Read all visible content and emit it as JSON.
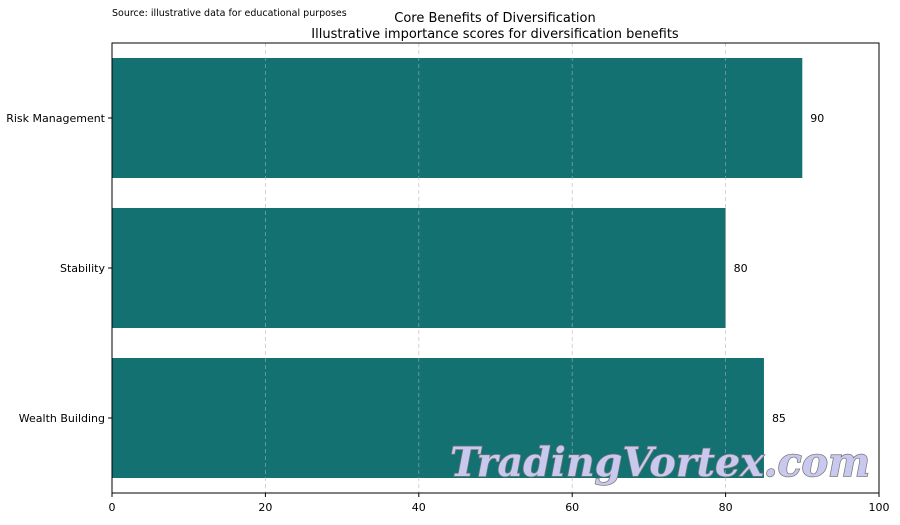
{
  "chart_data": {
    "type": "bar",
    "orientation": "horizontal",
    "title": "Core Benefits of Diversification",
    "subtitle": "Illustrative importance scores for diversification benefits",
    "source_note": "Source: illustrative data for educational purposes",
    "categories": [
      "Risk Management",
      "Stability",
      "Wealth Building"
    ],
    "values": [
      90,
      80,
      85
    ],
    "data_labels": [
      "90",
      "80",
      "85"
    ],
    "xlim": [
      0,
      100
    ],
    "xticks": [
      0,
      20,
      40,
      60,
      80,
      100
    ],
    "xtick_labels": [
      "0",
      "20",
      "40",
      "60",
      "80",
      "100"
    ],
    "xlabel": "",
    "ylabel": "",
    "grid": "x-dashed",
    "bar_color": "#137171",
    "watermark": "TradingVortex.com"
  }
}
